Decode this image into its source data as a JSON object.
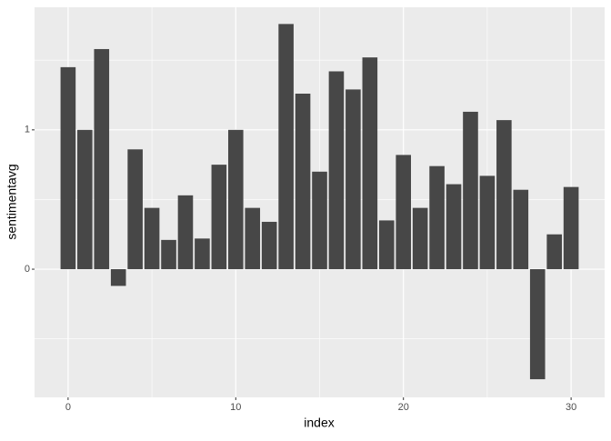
{
  "chart_data": {
    "type": "bar",
    "x": [
      0,
      1,
      2,
      3,
      4,
      5,
      6,
      7,
      8,
      9,
      10,
      11,
      12,
      13,
      14,
      15,
      16,
      17,
      18,
      19,
      20,
      21,
      22,
      23,
      24,
      25,
      26,
      27,
      28,
      29,
      30
    ],
    "values": [
      1.45,
      1.0,
      1.58,
      -0.12,
      0.86,
      0.44,
      0.21,
      0.53,
      0.22,
      0.75,
      1.0,
      0.44,
      0.34,
      1.76,
      1.26,
      0.7,
      1.42,
      1.29,
      1.52,
      0.35,
      0.82,
      0.44,
      0.74,
      0.61,
      1.13,
      0.67,
      1.07,
      0.57,
      -0.79,
      0.25,
      0.59
    ],
    "color": "#474747",
    "xlabel": "index",
    "ylabel": "sentimentavg",
    "xlim": [
      -2,
      32
    ],
    "xticks": [
      0,
      10,
      20,
      30
    ],
    "ylim": [
      -0.92,
      1.88
    ],
    "yticks": [
      0,
      1
    ],
    "grid": true
  }
}
